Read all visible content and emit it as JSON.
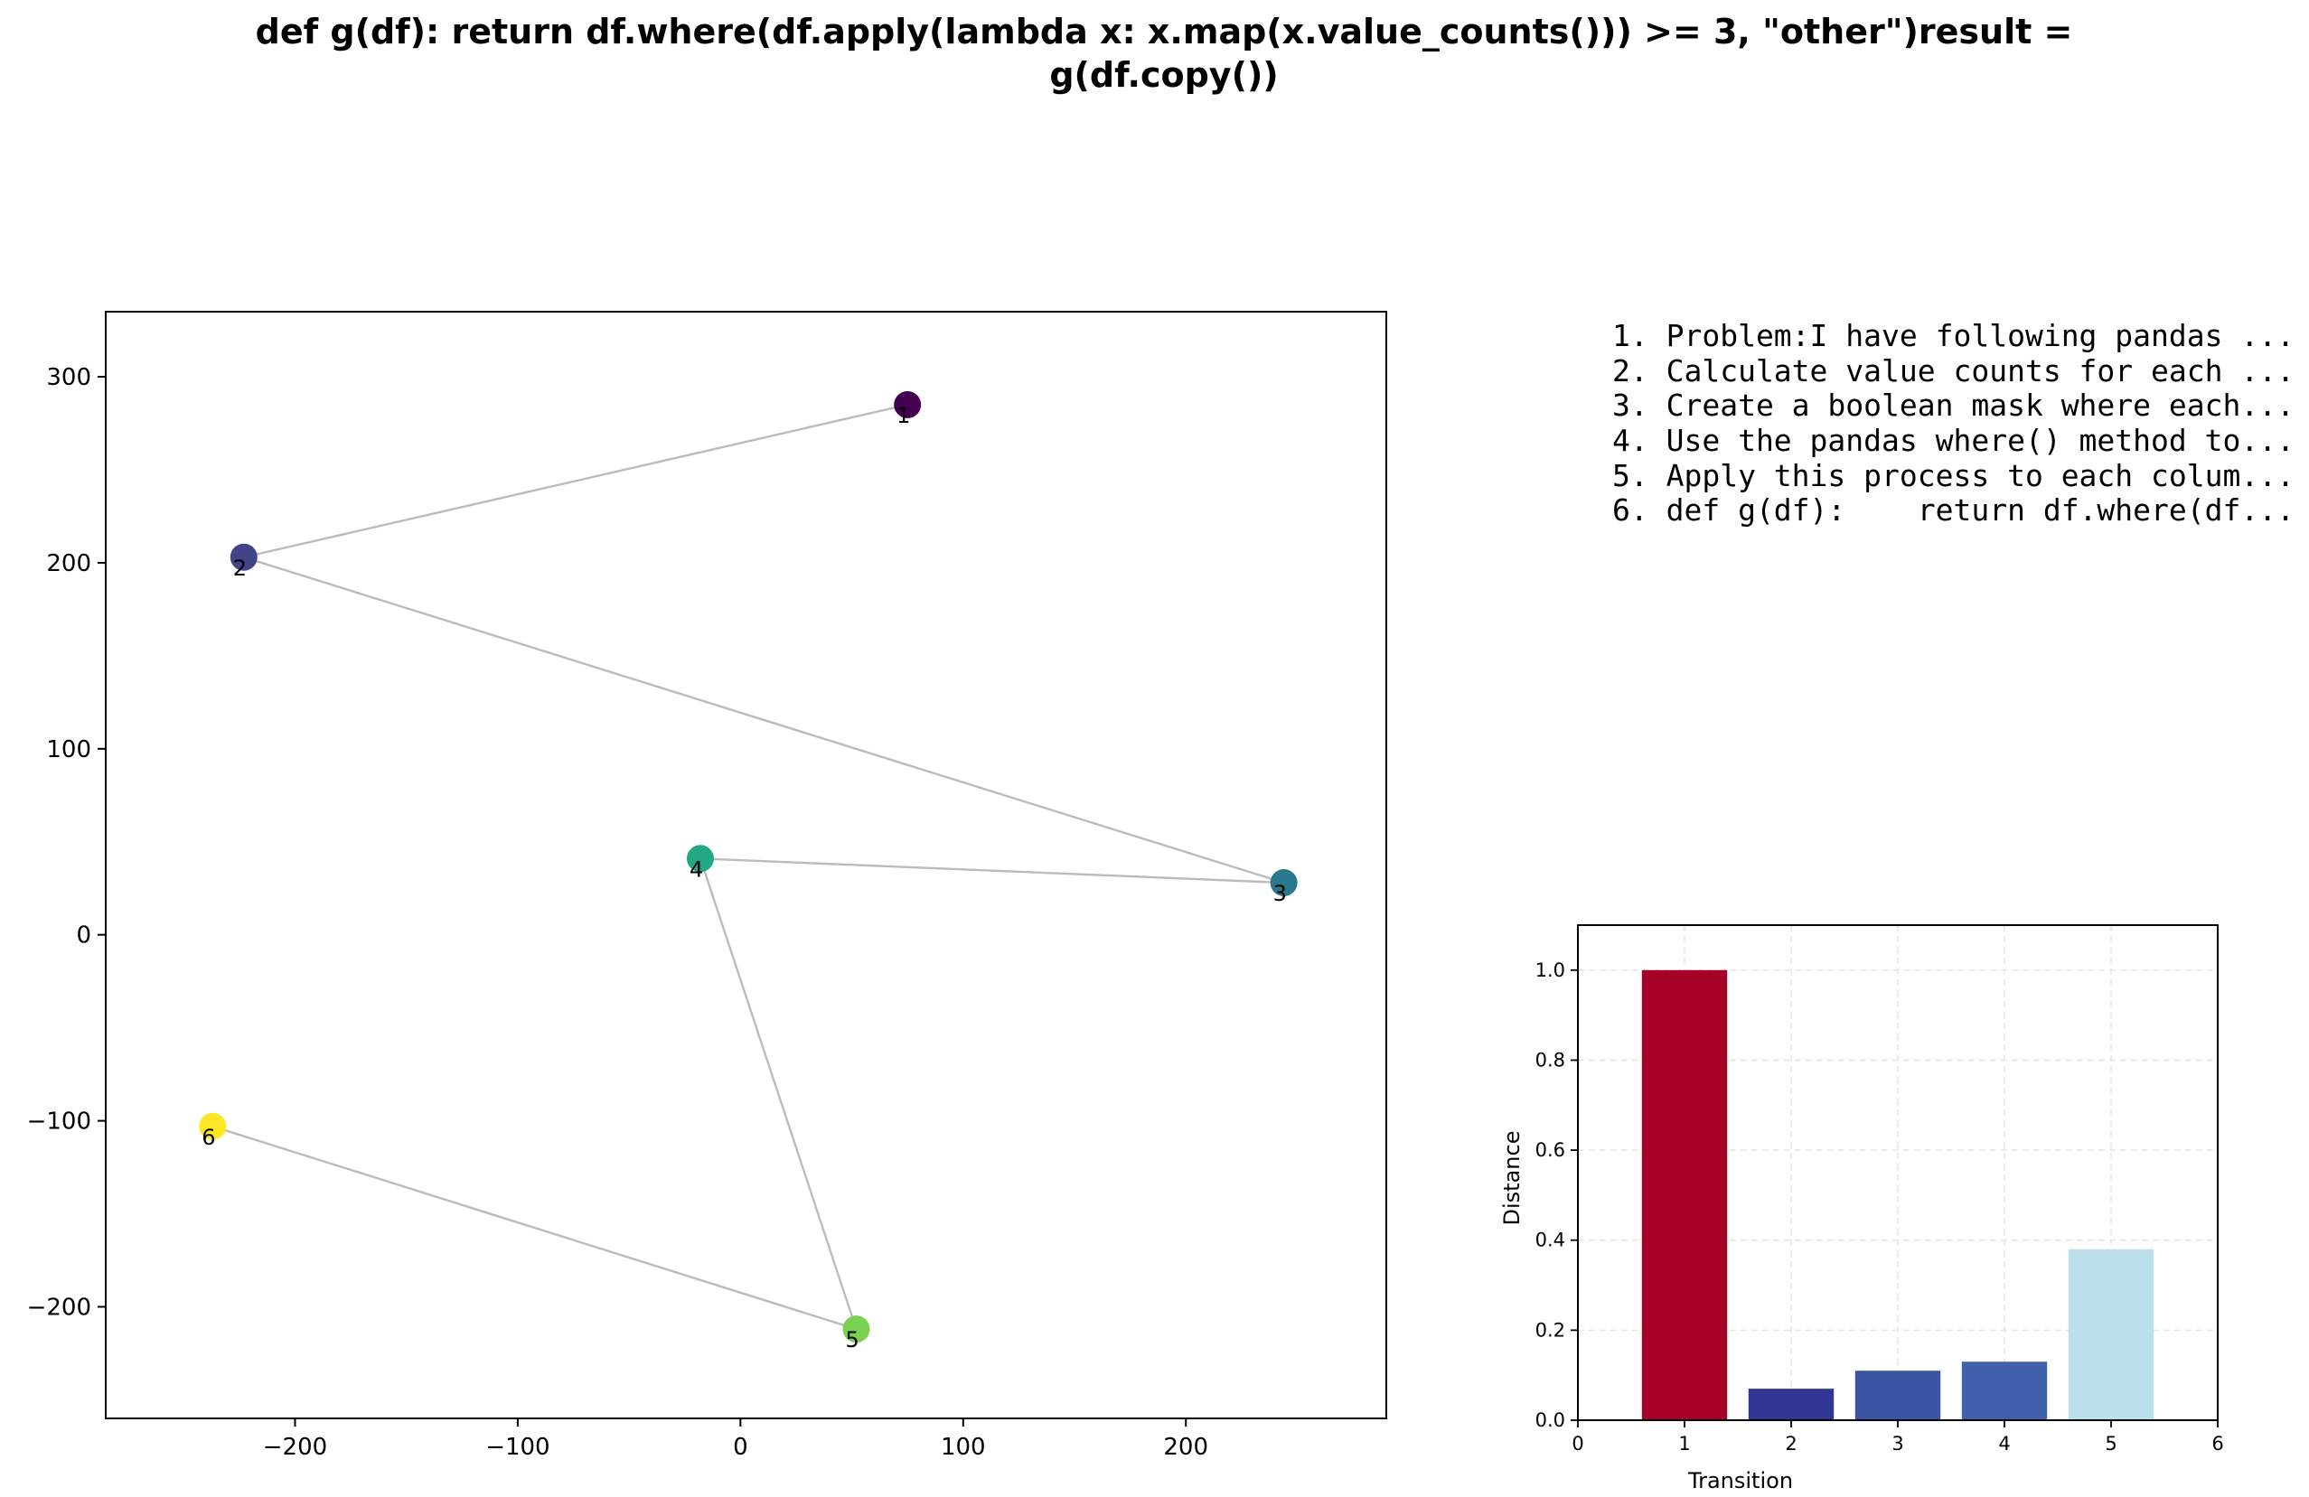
{
  "figure": {
    "title_line1": "def g(df):    return df.where(df.apply(lambda x: x.map(x.value_counts())) >= 3, \"other\")result =",
    "title_line2": "g(df.copy())"
  },
  "steps": [
    "1. Problem:I have following pandas ...",
    "2. Calculate value counts for each ...",
    "3. Create a boolean mask where each...",
    "4. Use the pandas where() method to...",
    "5. Apply this process to each colum...",
    "6. def g(df):    return df.where(df..."
  ],
  "chart_data": [
    {
      "type": "scatter",
      "title": "",
      "xlabel": "",
      "ylabel": "",
      "xlim": [
        -285,
        290
      ],
      "ylim": [
        -260,
        335
      ],
      "xticks": [
        -200,
        -100,
        0,
        100,
        200
      ],
      "yticks": [
        -200,
        -100,
        0,
        100,
        200,
        300
      ],
      "xtick_labels": [
        "−200",
        "−100",
        "0",
        "100",
        "200"
      ],
      "ytick_labels": [
        "−200",
        "−100",
        "0",
        "100",
        "200",
        "300"
      ],
      "connect_in_order": true,
      "line_color": "#bbbbbb",
      "points": [
        {
          "label": "1",
          "x": 75,
          "y": 285,
          "color": "#440154"
        },
        {
          "label": "2",
          "x": -223,
          "y": 203,
          "color": "#414487"
        },
        {
          "label": "3",
          "x": 244,
          "y": 28,
          "color": "#2a788e"
        },
        {
          "label": "4",
          "x": -18,
          "y": 41,
          "color": "#22a884"
        },
        {
          "label": "5",
          "x": 52,
          "y": -212,
          "color": "#7ad151"
        },
        {
          "label": "6",
          "x": -237,
          "y": -103,
          "color": "#fde725"
        }
      ]
    },
    {
      "type": "bar",
      "title": "",
      "xlabel": "Transition",
      "ylabel": "Distance",
      "xlim": [
        0,
        6
      ],
      "ylim": [
        0,
        1.1
      ],
      "xticks": [
        0,
        1,
        2,
        3,
        4,
        5,
        6
      ],
      "yticks": [
        0.0,
        0.2,
        0.4,
        0.6,
        0.8,
        1.0
      ],
      "ytick_labels": [
        "0.0",
        "0.2",
        "0.4",
        "0.6",
        "0.8",
        "1.0"
      ],
      "grid": true,
      "categories": [
        1,
        2,
        3,
        4,
        5
      ],
      "values": [
        1.0,
        0.07,
        0.11,
        0.13,
        0.38
      ],
      "colors": [
        "#a50026",
        "#313695",
        "#3a54a3",
        "#4060ab",
        "#bbe0eb"
      ]
    }
  ]
}
